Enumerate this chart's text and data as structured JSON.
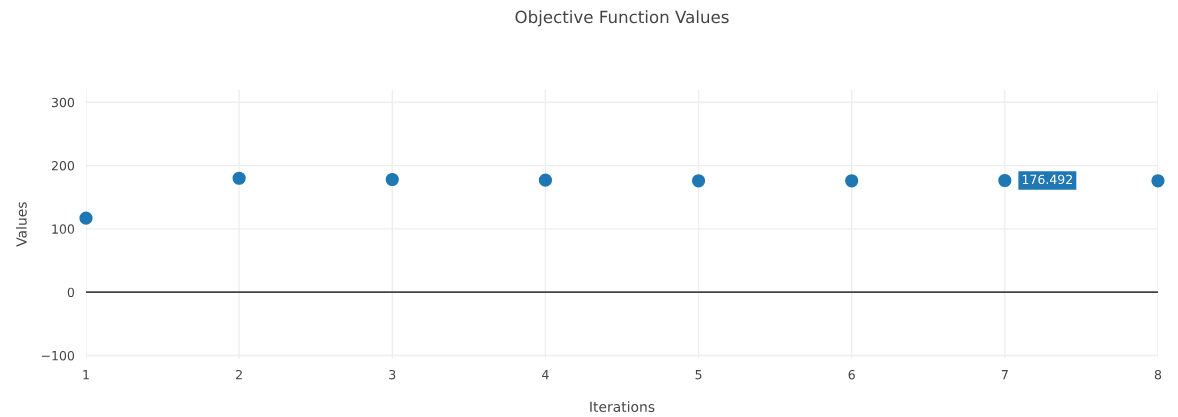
{
  "chart_data": {
    "type": "scatter",
    "title": "Objective Function Values",
    "xlabel": "Iterations",
    "ylabel": "Values",
    "x": [
      1,
      2,
      3,
      4,
      5,
      6,
      7,
      8
    ],
    "series": [
      {
        "color": "#1f77b4",
        "values": [
          117,
          180,
          178,
          177,
          176,
          176,
          176.492,
          176
        ]
      }
    ],
    "xlim": [
      1,
      8
    ],
    "xticks": [
      1,
      2,
      3,
      4,
      5,
      6,
      7,
      8
    ],
    "ylim": [
      -105,
      320
    ],
    "yticks": [
      {
        "value": -100,
        "label": "−100"
      },
      0,
      100,
      200,
      300
    ],
    "ref_lines": [
      {
        "axis": "y",
        "value": 0,
        "color": "#444444"
      }
    ],
    "annotations": [
      {
        "text": "176.492",
        "x": 7,
        "y": 176.492
      }
    ],
    "grid": true,
    "marker": "circle",
    "legend": false
  }
}
